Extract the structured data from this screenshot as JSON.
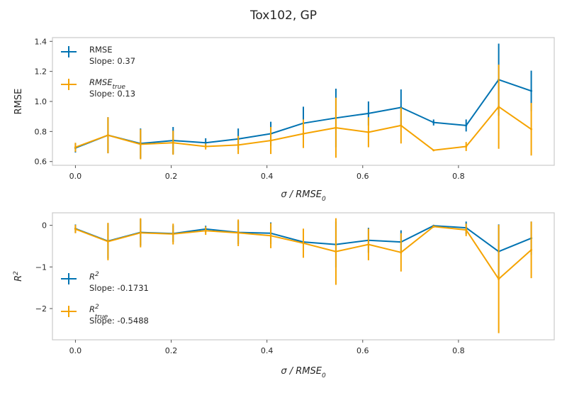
{
  "suptitle": "Tox102, GP",
  "colors": {
    "rmse": "#0173b2",
    "true": "#f5a300",
    "frame": "#cccccc",
    "text": "#262626"
  },
  "chart_data": [
    {
      "type": "line",
      "title": "",
      "xlabel_main": "σ / RMSE",
      "xlabel_sub": "0",
      "ylabel": "RMSE",
      "xlim": [
        -0.048,
        1.0
      ],
      "ylim": [
        0.575,
        1.425
      ],
      "xticks": [
        0.0,
        0.2,
        0.4,
        0.6,
        0.8
      ],
      "xtick_labels": [
        "0.0",
        "0.2",
        "0.4",
        "0.6",
        "0.8"
      ],
      "yticks": [
        0.6,
        0.8,
        1.0,
        1.2,
        1.4
      ],
      "ytick_labels": [
        "0.6",
        "0.8",
        "1.0",
        "1.2",
        "1.4"
      ],
      "legend_position": "upper-left",
      "x": [
        0.0,
        0.068,
        0.136,
        0.204,
        0.272,
        0.34,
        0.408,
        0.476,
        0.544,
        0.612,
        0.68,
        0.748,
        0.816,
        0.884,
        0.952
      ],
      "series": [
        {
          "name": "RMSE",
          "legend_main": "RMSE",
          "legend_sub": "",
          "slope_label": "Slope: 0.37",
          "color_key": "rmse",
          "values": [
            0.69,
            0.775,
            0.72,
            0.74,
            0.725,
            0.75,
            0.785,
            0.855,
            0.89,
            0.92,
            0.96,
            0.86,
            0.84,
            1.145,
            1.07
          ],
          "errors": [
            0.03,
            0.12,
            0.1,
            0.09,
            0.03,
            0.07,
            0.08,
            0.11,
            0.195,
            0.08,
            0.12,
            0.02,
            0.04,
            0.24,
            0.135
          ]
        },
        {
          "name": "RMSE_true",
          "legend_main": "RMSE",
          "legend_sub": "true",
          "slope_label": "Slope: 0.13",
          "color_key": "true",
          "values": [
            0.695,
            0.775,
            0.715,
            0.725,
            0.7,
            0.71,
            0.74,
            0.785,
            0.825,
            0.795,
            0.84,
            0.675,
            0.7,
            0.965,
            0.815
          ],
          "errors": [
            0.03,
            0.12,
            0.1,
            0.08,
            0.02,
            0.06,
            0.09,
            0.095,
            0.2,
            0.1,
            0.12,
            0.0,
            0.03,
            0.28,
            0.175
          ]
        }
      ]
    },
    {
      "type": "line",
      "title": "",
      "xlabel_main": "σ / RMSE",
      "xlabel_sub": "0",
      "ylabel_main": "R",
      "ylabel_sup": "2",
      "xlim": [
        -0.048,
        1.0
      ],
      "ylim": [
        -2.75,
        0.3
      ],
      "xticks": [
        0.0,
        0.2,
        0.4,
        0.6,
        0.8
      ],
      "xtick_labels": [
        "0.0",
        "0.2",
        "0.4",
        "0.6",
        "0.8"
      ],
      "yticks": [
        -2,
        -1,
        0
      ],
      "ytick_labels": [
        "−2",
        "−1",
        "0"
      ],
      "legend_position": "lower-left",
      "x": [
        0.0,
        0.068,
        0.136,
        0.204,
        0.272,
        0.34,
        0.408,
        0.476,
        0.544,
        0.612,
        0.68,
        0.748,
        0.816,
        0.884,
        0.952
      ],
      "series": [
        {
          "name": "R^2",
          "legend_main": "R",
          "legend_sup": "2",
          "legend_sub": "",
          "slope_label": "Slope: -0.1731",
          "color_key": "rmse",
          "values": [
            -0.08,
            -0.38,
            -0.17,
            -0.2,
            -0.09,
            -0.17,
            -0.19,
            -0.4,
            -0.46,
            -0.36,
            -0.4,
            -0.01,
            -0.06,
            -0.63,
            -0.31
          ],
          "errors": [
            0.1,
            0.42,
            0.32,
            0.2,
            0.08,
            0.28,
            0.26,
            0.3,
            0.55,
            0.3,
            0.28,
            0.02,
            0.15,
            0.65,
            0.4
          ]
        },
        {
          "name": "R^2_true",
          "legend_main": "R",
          "legend_sup": "2",
          "legend_sub": "true",
          "slope_label": "Slope: -0.5488",
          "color_key": "true",
          "values": [
            -0.09,
            -0.39,
            -0.18,
            -0.21,
            -0.13,
            -0.18,
            -0.25,
            -0.43,
            -0.63,
            -0.46,
            -0.65,
            -0.03,
            -0.11,
            -1.29,
            -0.59
          ],
          "errors": [
            0.1,
            0.45,
            0.35,
            0.25,
            0.1,
            0.32,
            0.3,
            0.35,
            0.8,
            0.38,
            0.46,
            0.03,
            0.15,
            1.3,
            0.68
          ]
        }
      ]
    }
  ]
}
